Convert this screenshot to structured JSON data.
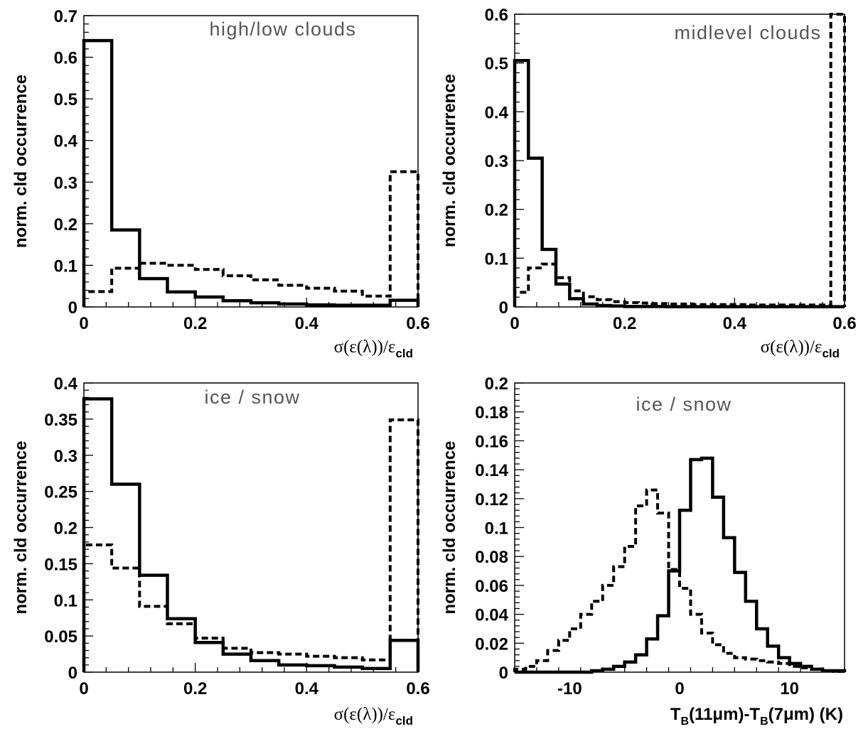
{
  "chart_data": [
    {
      "type": "bar",
      "annotation": "high/low clouds",
      "ylabel": "norm. cld occurrence",
      "xlabel": "σ(ε(λ))/ε",
      "xlabel_sub": "cld",
      "xlim": [
        0,
        0.6
      ],
      "ylim": [
        0,
        0.7
      ],
      "xticks": [
        0,
        0.2,
        0.4,
        0.6
      ],
      "xtick_labels": [
        "0",
        "0.2",
        "0.4",
        "0.6"
      ],
      "yticks": [
        0,
        0.1,
        0.2,
        0.3,
        0.4,
        0.5,
        0.6,
        0.7
      ],
      "ytick_labels": [
        "0",
        "0.1",
        "0.2",
        "0.3",
        "0.4",
        "0.5",
        "0.6",
        "0.7"
      ],
      "bin_edges": [
        0,
        0.05,
        0.1,
        0.15,
        0.2,
        0.25,
        0.3,
        0.35,
        0.4,
        0.45,
        0.5,
        0.55,
        0.6
      ],
      "series": [
        {
          "style": "solid",
          "values": [
            0.64,
            0.185,
            0.068,
            0.036,
            0.024,
            0.015,
            0.01,
            0.007,
            0.005,
            0.004,
            0.004,
            0.016
          ]
        },
        {
          "style": "dashed",
          "values": [
            0.037,
            0.093,
            0.105,
            0.1,
            0.09,
            0.075,
            0.065,
            0.052,
            0.045,
            0.038,
            0.026,
            0.325
          ]
        }
      ]
    },
    {
      "type": "bar",
      "annotation": "midlevel clouds",
      "ylabel": "norm. cld occurrence",
      "xlabel": "σ(ε(λ))/ε",
      "xlabel_sub": "cld",
      "xlim": [
        0,
        0.6
      ],
      "ylim": [
        0,
        0.6
      ],
      "xticks": [
        0,
        0.2,
        0.4,
        0.6
      ],
      "xtick_labels": [
        "0",
        "0.2",
        "0.4",
        "0.6"
      ],
      "yticks": [
        0,
        0.1,
        0.2,
        0.3,
        0.4,
        0.5,
        0.6
      ],
      "ytick_labels": [
        "0",
        "0.1",
        "0.2",
        "0.3",
        "0.4",
        "0.5",
        "0.6"
      ],
      "bin_edges": [
        0,
        0.025,
        0.05,
        0.075,
        0.1,
        0.125,
        0.15,
        0.175,
        0.2,
        0.225,
        0.25,
        0.275,
        0.3,
        0.325,
        0.35,
        0.375,
        0.4,
        0.425,
        0.45,
        0.475,
        0.5,
        0.525,
        0.55,
        0.575,
        0.6
      ],
      "series": [
        {
          "style": "solid",
          "values": [
            0.505,
            0.305,
            0.118,
            0.047,
            0.017,
            0.006,
            0.003,
            0.002,
            0.001,
            0.001,
            0.001,
            0.0005,
            0.0005,
            0.0005,
            0.0005,
            0.0005,
            0.0005,
            0.0005,
            0.0005,
            0.0005,
            0.0005,
            0.0005,
            0.0005,
            0.0005
          ]
        },
        {
          "style": "dashed",
          "values": [
            0.03,
            0.08,
            0.088,
            0.06,
            0.033,
            0.021,
            0.015,
            0.011,
            0.009,
            0.008,
            0.007,
            0.006,
            0.006,
            0.005,
            0.005,
            0.005,
            0.005,
            0.004,
            0.004,
            0.004,
            0.004,
            0.004,
            0.004,
            0.6
          ]
        }
      ]
    },
    {
      "type": "bar",
      "annotation": "ice / snow",
      "ylabel": "norm. cld occurrence",
      "xlabel": "σ(ε(λ))/ε",
      "xlabel_sub": "cld",
      "xlim": [
        0,
        0.6
      ],
      "ylim": [
        0,
        0.4
      ],
      "xticks": [
        0,
        0.2,
        0.4,
        0.6
      ],
      "xtick_labels": [
        "0",
        "0.2",
        "0.4",
        "0.6"
      ],
      "yticks": [
        0,
        0.05,
        0.1,
        0.15,
        0.2,
        0.25,
        0.3,
        0.35,
        0.4
      ],
      "ytick_labels": [
        "0",
        "0.05",
        "0.1",
        "0.15",
        "0.2",
        "0.25",
        "0.3",
        "0.35",
        "0.4"
      ],
      "bin_edges": [
        0,
        0.05,
        0.1,
        0.15,
        0.2,
        0.25,
        0.3,
        0.35,
        0.4,
        0.45,
        0.5,
        0.55,
        0.6
      ],
      "series": [
        {
          "style": "solid",
          "values": [
            0.378,
            0.26,
            0.134,
            0.074,
            0.041,
            0.025,
            0.016,
            0.01,
            0.009,
            0.007,
            0.005,
            0.044
          ]
        },
        {
          "style": "dashed",
          "values": [
            0.176,
            0.144,
            0.091,
            0.067,
            0.047,
            0.033,
            0.027,
            0.025,
            0.022,
            0.02,
            0.017,
            0.349
          ]
        }
      ]
    },
    {
      "type": "bar",
      "annotation": "ice / snow",
      "ylabel": "norm. cld occurrence",
      "xlabel": "T",
      "xlabel_parts": [
        "T",
        "B",
        "(11μm)-T",
        "B",
        "(7μm) (K)"
      ],
      "xlim": [
        -15,
        15
      ],
      "ylim": [
        0,
        0.2
      ],
      "xticks": [
        -10,
        0,
        10
      ],
      "xtick_labels": [
        "-10",
        "0",
        "10"
      ],
      "yticks": [
        0,
        0.02,
        0.04,
        0.06,
        0.08,
        0.1,
        0.12,
        0.14,
        0.16,
        0.18,
        0.2
      ],
      "ytick_labels": [
        "0",
        "0.02",
        "0.04",
        "0.06",
        "0.08",
        "0.1",
        "0.12",
        "0.14",
        "0.16",
        "0.18",
        "0.2"
      ],
      "bin_edges": [
        -15,
        -14,
        -13,
        -12,
        -11,
        -10,
        -9,
        -8,
        -7,
        -6,
        -5,
        -4,
        -3,
        -2,
        -1,
        0,
        1,
        2,
        3,
        4,
        5,
        6,
        7,
        8,
        9,
        10,
        11,
        12,
        13,
        14,
        15
      ],
      "series": [
        {
          "style": "solid",
          "values": [
            0,
            0,
            0,
            0,
            0,
            0,
            0,
            0.001,
            0.002,
            0.004,
            0.007,
            0.012,
            0.023,
            0.039,
            0.07,
            0.112,
            0.147,
            0.148,
            0.121,
            0.093,
            0.069,
            0.049,
            0.03,
            0.018,
            0.01,
            0.006,
            0.004,
            0.002,
            0.001,
            0.001
          ]
        },
        {
          "style": "dashed",
          "values": [
            0.002,
            0.004,
            0.008,
            0.015,
            0.022,
            0.03,
            0.04,
            0.049,
            0.06,
            0.073,
            0.087,
            0.115,
            0.126,
            0.11,
            0.071,
            0.058,
            0.04,
            0.027,
            0.019,
            0.013,
            0.01,
            0.009,
            0.008,
            0.007,
            0.006,
            0.004,
            0.003,
            0.002,
            0.001,
            0.0005
          ]
        }
      ]
    }
  ]
}
